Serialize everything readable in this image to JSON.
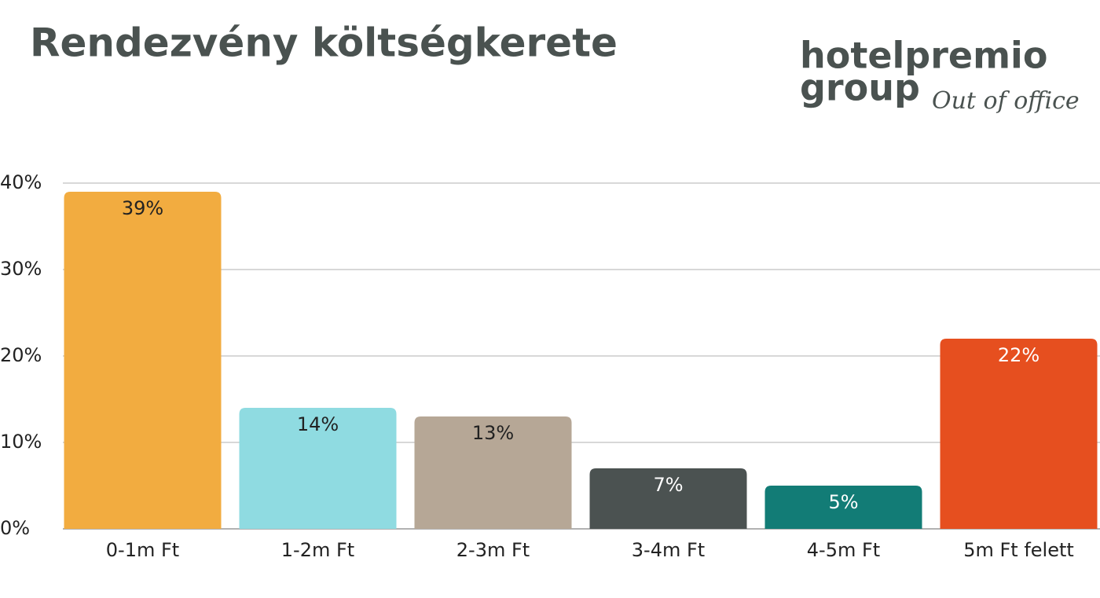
{
  "chart_data": {
    "type": "bar",
    "title": "Rendezvény költségkerete",
    "categories": [
      "0-1m Ft",
      "1-2m Ft",
      "2-3m Ft",
      "3-4m Ft",
      "4-5m Ft",
      "5m Ft felett"
    ],
    "values": [
      39,
      14,
      13,
      7,
      5,
      22
    ],
    "value_labels": [
      "39%",
      "14%",
      "13%",
      "7%",
      "5%",
      "22%"
    ],
    "colors": [
      "#f2ac40",
      "#8fdbe1",
      "#b6a796",
      "#4b5251",
      "#127c76",
      "#e64f1f"
    ],
    "value_label_colors": [
      "#222222",
      "#222222",
      "#222222",
      "#ffffff",
      "#ffffff",
      "#ffffff"
    ],
    "ylim": [
      0,
      40
    ],
    "yticks": [
      {
        "value": 0,
        "label": "0%"
      },
      {
        "value": 10,
        "label": "10%"
      },
      {
        "value": 20,
        "label": "20%"
      },
      {
        "value": 30,
        "label": "30%"
      },
      {
        "value": 40,
        "label": "40%"
      }
    ],
    "grid": true
  },
  "logo": {
    "brand": "hotelpremio",
    "group": "group",
    "tagline": "Out of office"
  }
}
